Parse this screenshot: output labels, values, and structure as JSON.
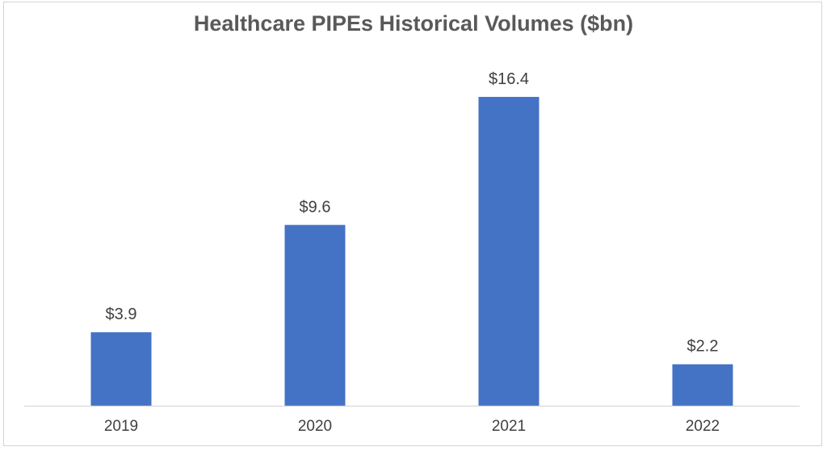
{
  "chart_data": {
    "type": "bar",
    "title": "Healthcare PIPEs Historical Volumes ($bn)",
    "categories": [
      "2019",
      "2020",
      "2021",
      "2022"
    ],
    "values": [
      3.9,
      9.6,
      16.4,
      2.2
    ],
    "data_labels": [
      "$3.9",
      "$9.6",
      "$16.4",
      "$2.2"
    ],
    "xlabel": "",
    "ylabel": "",
    "ylim": [
      0,
      20
    ],
    "grid": false,
    "legend": "none",
    "bar_color": "#4472C4",
    "axis_color": "#d9d9d9"
  }
}
